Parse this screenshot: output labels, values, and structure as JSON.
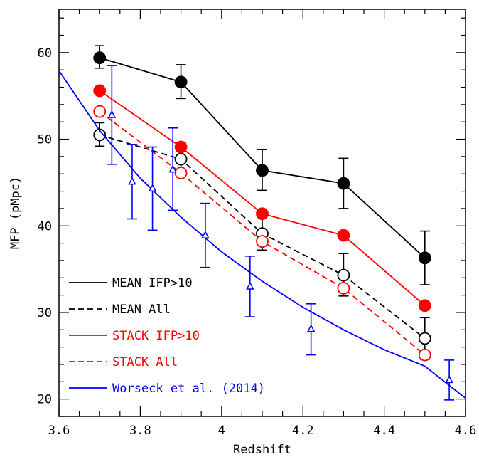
{
  "chart_data": {
    "type": "line",
    "xlabel": "Redshift",
    "ylabel": "MFP (pMpc)",
    "xlim": [
      3.6,
      4.6
    ],
    "ylim": [
      18,
      65
    ],
    "x_ticks": [
      "3.6",
      "3.8",
      "4",
      "4.2",
      "4.4",
      "4.6"
    ],
    "y_ticks": [
      "20",
      "30",
      "40",
      "50",
      "60"
    ],
    "grid": false,
    "legend_position": "bottom-left",
    "series": [
      {
        "name": "MEAN IFP>10",
        "color": "#000000",
        "line": "solid",
        "marker": "filled-circle",
        "x": [
          3.7,
          3.9,
          4.1,
          4.3,
          4.5
        ],
        "y": [
          59.4,
          56.6,
          46.4,
          44.9,
          36.3
        ],
        "err_low": [
          1.2,
          1.9,
          2.3,
          2.9,
          3.1
        ],
        "err_high": [
          1.4,
          2.0,
          2.4,
          2.9,
          3.1
        ]
      },
      {
        "name": "MEAN All",
        "color": "#000000",
        "line": "dashed",
        "marker": "open-circle",
        "x": [
          3.7,
          3.9,
          4.1,
          4.3,
          4.5
        ],
        "y": [
          50.5,
          47.7,
          39.1,
          34.3,
          27.0
        ],
        "err_low": [
          1.3,
          1.8,
          1.9,
          2.4,
          2.4
        ],
        "err_high": [
          1.4,
          1.9,
          2.0,
          2.5,
          2.4
        ]
      },
      {
        "name": "STACK IFP>10",
        "color": "#ff0000",
        "line": "solid",
        "marker": "filled-circle",
        "x": [
          3.7,
          3.9,
          4.1,
          4.3,
          4.5
        ],
        "y": [
          55.6,
          49.1,
          41.4,
          38.9,
          30.8
        ]
      },
      {
        "name": "STACK All",
        "color": "#ff0000",
        "line": "dashed",
        "marker": "open-circle",
        "x": [
          3.7,
          3.9,
          4.1,
          4.3,
          4.5
        ],
        "y": [
          53.2,
          46.1,
          38.2,
          32.8,
          25.1
        ]
      },
      {
        "name": "Worseck et al. (2014)",
        "color": "#0000ff",
        "line": "solid",
        "marker": "none",
        "model_curve": {
          "x": [
            3.6,
            3.7,
            3.8,
            3.9,
            4.0,
            4.1,
            4.2,
            4.3,
            4.4,
            4.5,
            4.6
          ],
          "y": [
            57.9,
            51.0,
            45.5,
            41.0,
            37.0,
            33.6,
            30.6,
            28.0,
            25.7,
            23.8,
            20.1
          ]
        },
        "data_points": {
          "marker": "open-triangle",
          "x": [
            3.73,
            3.78,
            3.83,
            3.88,
            3.96,
            4.07,
            4.22,
            4.56
          ],
          "y": [
            52.8,
            45.1,
            44.3,
            46.5,
            38.9,
            33.0,
            28.1,
            22.2
          ],
          "err_low": [
            5.7,
            4.3,
            4.8,
            4.7,
            3.7,
            3.5,
            3.0,
            2.3
          ],
          "err_high": [
            5.7,
            4.3,
            4.8,
            4.8,
            3.7,
            3.5,
            2.9,
            2.3
          ]
        }
      }
    ]
  }
}
